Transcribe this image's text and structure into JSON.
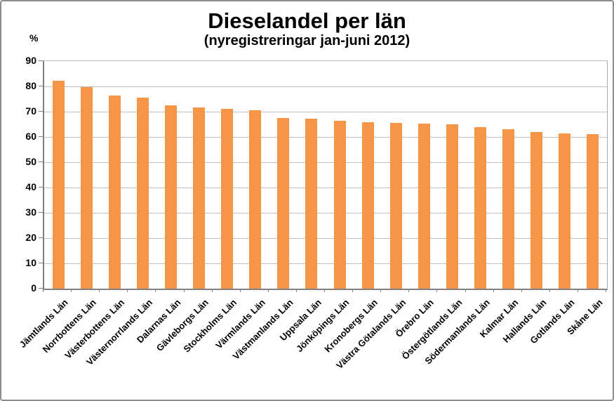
{
  "frame": {
    "background_color": "#ffffff",
    "border_color": "#8d8d8d"
  },
  "chart_data": {
    "type": "bar",
    "title": "Dieselandel per län",
    "subtitle": "(nyregistreringar jan-juni 2012)",
    "unit_label": "%",
    "xlabel": "",
    "ylabel": "%",
    "ylim": [
      0,
      90
    ],
    "y_ticks": [
      0,
      10,
      20,
      30,
      40,
      50,
      60,
      70,
      80,
      90
    ],
    "grid": true,
    "legend": "none",
    "bar_color": "#F79646",
    "gridline_color": "#bfbfbf",
    "axis_color": "#808080",
    "category_label_rotation_deg": 45,
    "categories": [
      "Jämtlands Län",
      "Norrbottens Län",
      "Västerbottens Län",
      "Västernorrlands Län",
      "Dalarnas Län",
      "Gävleborgs Län",
      "Stockholms Län",
      "Värmlands Län",
      "Västmanlands Län",
      "Uppsala Län",
      "Jönköpings Län",
      "Kronobergs Län",
      "Västra Götalands Län",
      "Örebro Län",
      "Östergötlands Län",
      "Södermanlands Län",
      "Kalmar Län",
      "Hallands Län",
      "Gotlands Län",
      "Skåne Län"
    ],
    "values": [
      82.1,
      79.6,
      76.4,
      75.6,
      72.6,
      71.7,
      71.0,
      70.6,
      67.6,
      67.1,
      66.5,
      65.8,
      65.5,
      65.4,
      65.1,
      63.8,
      63.0,
      61.9,
      61.4,
      61.2
    ]
  }
}
